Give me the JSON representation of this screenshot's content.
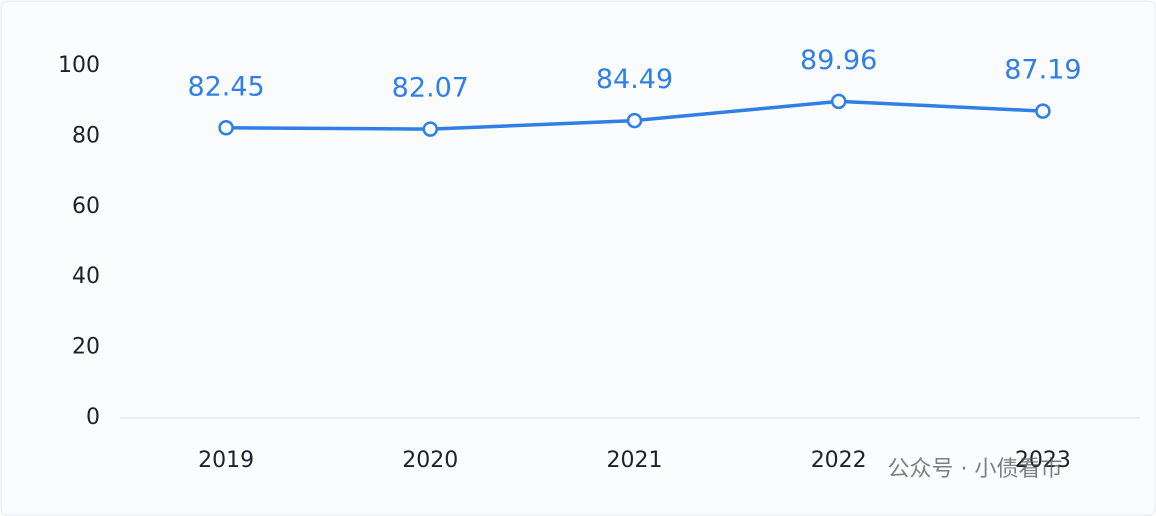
{
  "chart_data": {
    "type": "line",
    "categories": [
      "2019",
      "2020",
      "2021",
      "2022",
      "2023"
    ],
    "values": [
      82.45,
      82.07,
      84.49,
      89.96,
      87.19
    ],
    "color": "#2f7fe6",
    "ylim": [
      0,
      100
    ],
    "yticks": [
      0,
      20,
      40,
      60,
      80,
      100
    ],
    "grid": false,
    "watermark": "公众号 · 小债看市"
  }
}
